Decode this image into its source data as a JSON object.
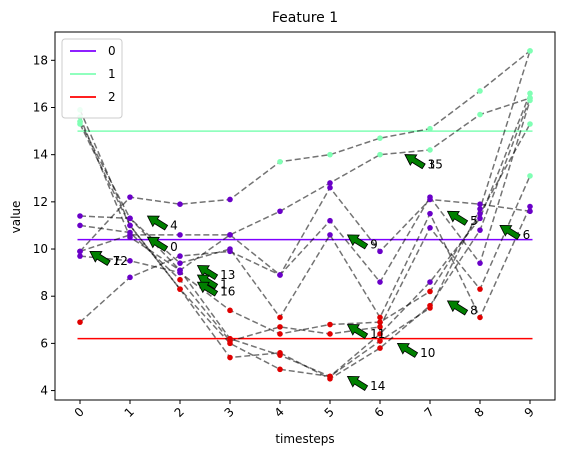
{
  "chart_data": {
    "type": "line",
    "title": "Feature 1",
    "xlabel": "timesteps",
    "ylabel": "value",
    "xlim": [
      -0.5,
      9.5
    ],
    "ylim": [
      3.6,
      19.2
    ],
    "x_ticks": [
      0,
      1,
      2,
      3,
      4,
      5,
      6,
      7,
      8,
      9
    ],
    "y_ticks": [
      4,
      6,
      8,
      10,
      12,
      14,
      16,
      18
    ],
    "grid": false,
    "legend_position": "top-left",
    "legend": [
      {
        "label": "0",
        "color": "#7f00ff"
      },
      {
        "label": "1",
        "color": "#80ffb4"
      },
      {
        "label": "2",
        "color": "#ff0000"
      }
    ],
    "hlines": [
      {
        "label": "0",
        "y": 10.4,
        "color": "#7f00ff"
      },
      {
        "label": "1",
        "y": 15.0,
        "color": "#80ffb4"
      },
      {
        "label": "2",
        "y": 6.2,
        "color": "#ff0000"
      }
    ],
    "series": [
      {
        "values": [
          15.6,
          10.5,
          9.1,
          6.2,
          5.5,
          4.6,
          6.4,
          8.6,
          11.3,
          16.6
        ],
        "colors": [
          "g",
          "p",
          "p",
          "r",
          "r",
          "r",
          "r",
          "p",
          "p",
          "g"
        ],
        "style": "dashed"
      },
      {
        "values": [
          15.4,
          11.3,
          9.1,
          10.6,
          11.6,
          12.8,
          14.0,
          14.2,
          15.7,
          16.4
        ],
        "colors": [
          "g",
          "p",
          "p",
          "p",
          "p",
          "p",
          "g",
          "g",
          "g",
          "g"
        ],
        "style": "dashed"
      },
      {
        "values": [
          15.9,
          11.0,
          8.3,
          5.4,
          5.6,
          4.5,
          5.8,
          7.6,
          10.8,
          16.4
        ],
        "colors": [
          "g",
          "p",
          "r",
          "r",
          "r",
          "r",
          "r",
          "r",
          "p",
          "g"
        ],
        "style": "dashed"
      },
      {
        "values": [
          15.3,
          11.0,
          8.3,
          6.0,
          4.9,
          4.6,
          6.1,
          7.5,
          11.7,
          18.4
        ],
        "colors": [
          "g",
          "p",
          "r",
          "r",
          "r",
          "r",
          "r",
          "r",
          "p",
          "g"
        ],
        "style": "dashed"
      },
      {
        "values": [
          9.9,
          10.6,
          10.6,
          10.6,
          8.9,
          11.2,
          8.6,
          12.2,
          9.4,
          16.3
        ],
        "colors": [
          "p",
          "p",
          "p",
          "p",
          "p",
          "p",
          "p",
          "p",
          "p",
          "g"
        ],
        "style": "dashed"
      },
      {
        "values": [
          11.4,
          11.3,
          9.4,
          10.0,
          7.1,
          10.6,
          7.1,
          11.5,
          7.1,
          11.8
        ],
        "colors": [
          "p",
          "p",
          "p",
          "p",
          "r",
          "p",
          "r",
          "p",
          "r",
          "p"
        ],
        "style": "dashed"
      },
      {
        "values": [
          9.7,
          9.5,
          9.0,
          7.4,
          6.4,
          6.8,
          6.9,
          8.2,
          11.5,
          15.3
        ],
        "colors": [
          "p",
          "p",
          "p",
          "r",
          "r",
          "r",
          "r",
          "r",
          "p",
          "g"
        ],
        "style": "dashed"
      },
      {
        "values": [
          11.0,
          10.7,
          8.7,
          6.1,
          6.7,
          6.4,
          6.7,
          10.9,
          8.3,
          13.1
        ],
        "colors": [
          "p",
          "p",
          "r",
          "r",
          "r",
          "r",
          "r",
          "p",
          "r",
          "g"
        ],
        "style": "dashed"
      },
      {
        "values": [
          6.9,
          8.8,
          9.7,
          9.9,
          8.9,
          12.6,
          9.9,
          12.1,
          11.9,
          11.6
        ],
        "colors": [
          "r",
          "p",
          "p",
          "p",
          "p",
          "p",
          "p",
          "p",
          "p",
          "p"
        ],
        "style": "dashed"
      },
      {
        "values": [
          9.9,
          12.2,
          11.9,
          12.1,
          13.7,
          14.0,
          14.7,
          15.1,
          16.7,
          18.4
        ],
        "colors": [
          "p",
          "p",
          "p",
          "p",
          "g",
          "g",
          "g",
          "g",
          "g",
          "g"
        ],
        "style": "dashed"
      }
    ],
    "annotations": [
      {
        "text": "4",
        "x": 1.35,
        "y": 11.4
      },
      {
        "text": "0",
        "x": 1.35,
        "y": 10.5
      },
      {
        "text": "7",
        "x": 0.2,
        "y": 9.9
      },
      {
        "text": "12",
        "x": 0.2,
        "y": 9.9
      },
      {
        "text": "13",
        "x": 2.35,
        "y": 9.3
      },
      {
        "text": "1",
        "x": 2.35,
        "y": 8.9
      },
      {
        "text": "16",
        "x": 2.35,
        "y": 8.6
      },
      {
        "text": "3",
        "x": 6.5,
        "y": 14.0
      },
      {
        "text": "15",
        "x": 6.5,
        "y": 14.0
      },
      {
        "text": "9",
        "x": 5.35,
        "y": 10.6
      },
      {
        "text": "5",
        "x": 7.35,
        "y": 11.6
      },
      {
        "text": "6",
        "x": 8.4,
        "y": 11.0
      },
      {
        "text": "8",
        "x": 7.35,
        "y": 7.8
      },
      {
        "text": "11",
        "x": 5.35,
        "y": 6.8
      },
      {
        "text": "10",
        "x": 6.35,
        "y": 6.0
      },
      {
        "text": "14",
        "x": 5.35,
        "y": 4.6
      }
    ]
  }
}
